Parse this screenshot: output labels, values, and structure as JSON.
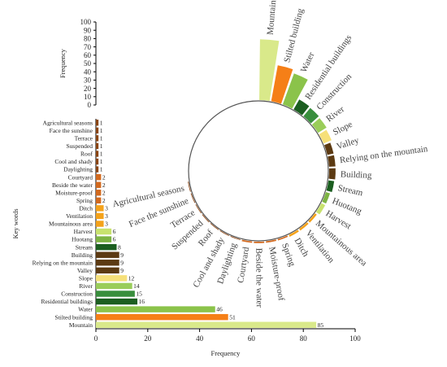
{
  "chart_data": {
    "type": "bar",
    "orientation": "horizontal",
    "xlabel": "Frequency",
    "ylabel": "Key words",
    "xlim": [
      0,
      100
    ],
    "xticks": [
      0,
      20,
      40,
      60,
      80,
      100
    ],
    "grid": false,
    "categories": [
      "Agricultural seasons",
      "Face the sunshine",
      "Terrace",
      "Suspended",
      "Roof",
      "Cool and shady",
      "Daylighting",
      "Courtyard",
      "Beside the water",
      "Moisture-proof",
      "Spring",
      "Ditch",
      "Ventilation",
      "Mountainous area",
      "Harvest",
      "Huotang",
      "Stream",
      "Building",
      "Relying on the mountain",
      "Valley",
      "Slope",
      "River",
      "Construction",
      "Residential buildings",
      "Water",
      "Stilted building",
      "Mountain"
    ],
    "values": [
      1,
      1,
      1,
      1,
      1,
      1,
      1,
      2,
      2,
      2,
      2,
      3,
      3,
      3,
      6,
      6,
      8,
      9,
      9,
      9,
      12,
      14,
      15,
      16,
      46,
      51,
      85
    ],
    "colors": [
      "#8B4513",
      "#8B4513",
      "#8B4513",
      "#8B4513",
      "#8B4513",
      "#8B4513",
      "#8B4513",
      "#D2691E",
      "#D2691E",
      "#D2691E",
      "#D2691E",
      "#F4A21A",
      "#F4A21A",
      "#F4A21A",
      "#C8E26E",
      "#7DB343",
      "#1B5E20",
      "#5C3A12",
      "#5C3A12",
      "#5C3A12",
      "#F6E079",
      "#9ACD5A",
      "#388E3C",
      "#1B5E20",
      "#8BC34A",
      "#F57F17",
      "#D9E98A"
    ],
    "radial": {
      "ylabel": "Frequency",
      "ylim": [
        0,
        100
      ],
      "yticks": [
        0,
        10,
        20,
        30,
        40,
        50,
        60,
        70,
        80,
        90,
        100
      ]
    }
  }
}
